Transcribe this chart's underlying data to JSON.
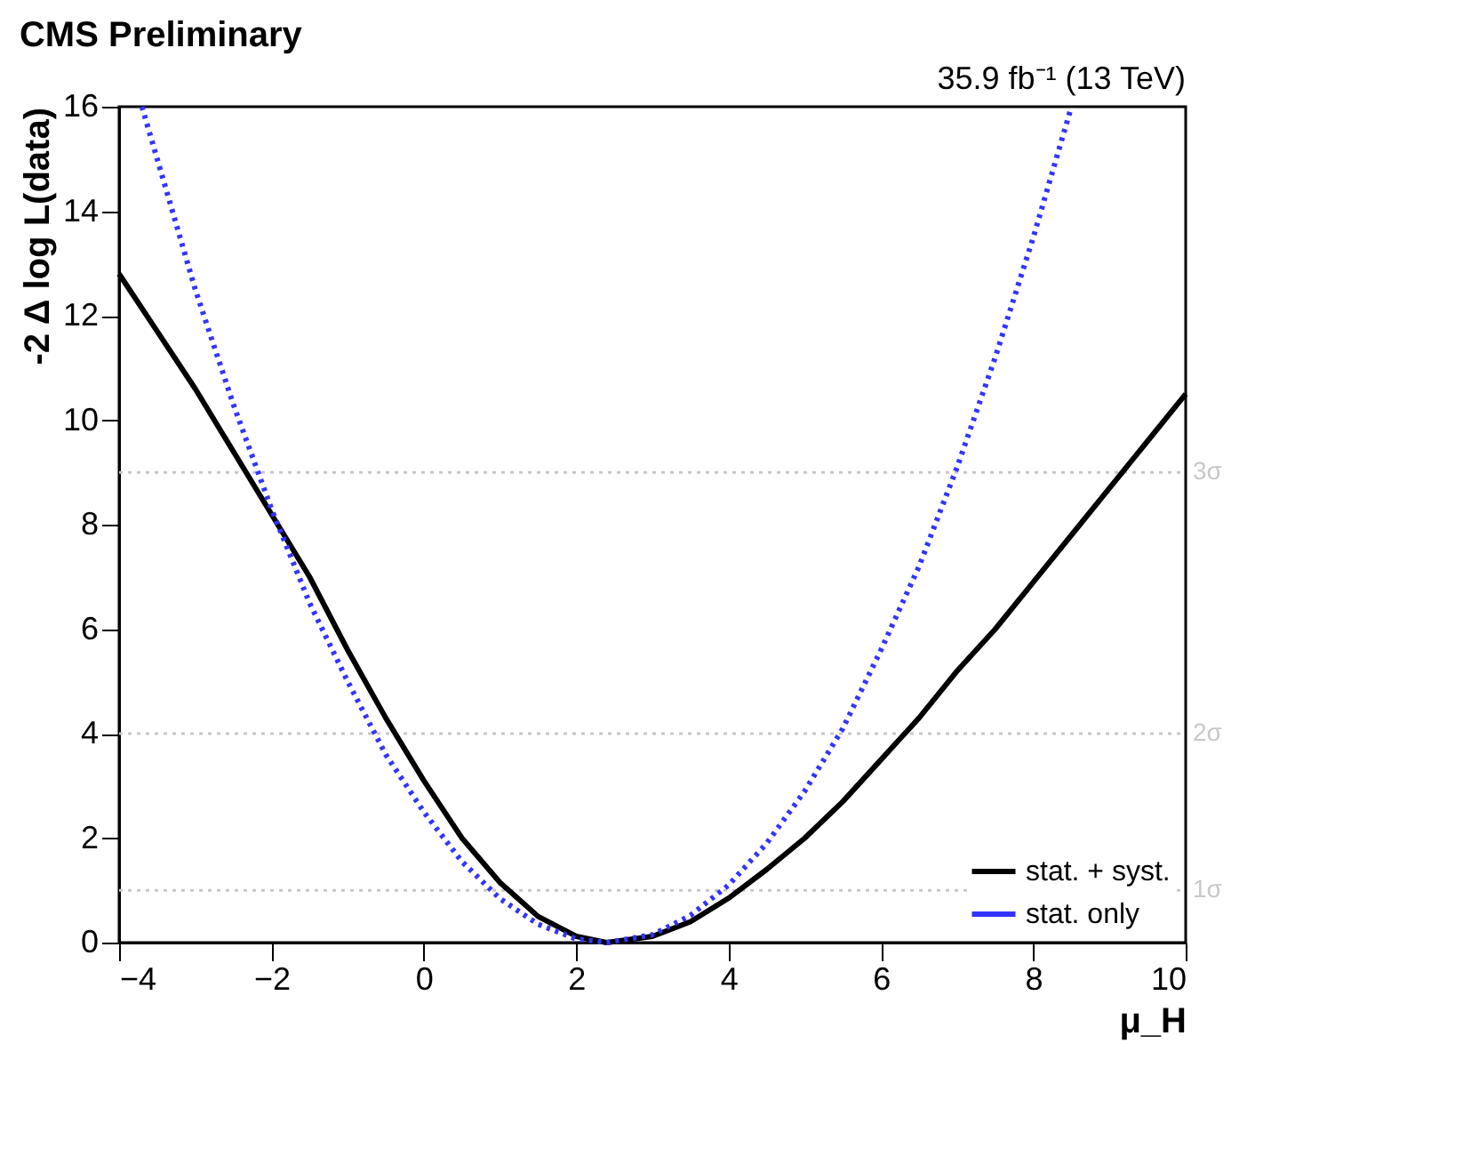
{
  "chart_data": {
    "type": "line",
    "title": "CMS Preliminary",
    "xlabel": "μ_H",
    "ylabel": "-2 Δ log L(data)",
    "annotations": [
      "35.9 fb⁻¹ (13 TeV)"
    ],
    "xlim": [
      -4,
      10
    ],
    "xticks": [
      -4,
      -2,
      0,
      2,
      4,
      6,
      8,
      10
    ],
    "ylim": [
      0,
      16
    ],
    "yticks": [
      0,
      2,
      4,
      6,
      8,
      10,
      12,
      14,
      16
    ],
    "grid": false,
    "legend": "bottom right",
    "marker": "none",
    "ref_lines": [
      {
        "axis": "y",
        "value": 1,
        "label": "1σ",
        "color": "#c8c8c8",
        "line_style": "dotted"
      },
      {
        "axis": "y",
        "value": 4,
        "label": "2σ",
        "color": "#c8c8c8",
        "line_style": "dotted"
      },
      {
        "axis": "y",
        "value": 9,
        "label": "3σ",
        "color": "#c8c8c8",
        "line_style": "dotted"
      }
    ],
    "series": [
      {
        "name": "stat. + syst.",
        "color": "#000000",
        "line_style": "solid",
        "x": [
          -4,
          -3.5,
          -3,
          -2.5,
          -2,
          -1.5,
          -1,
          -0.5,
          0,
          0.5,
          1,
          1.5,
          2,
          2.4,
          3,
          3.5,
          4,
          4.5,
          5,
          5.5,
          6,
          6.5,
          7,
          7.5,
          8,
          8.5,
          9,
          9.5,
          10
        ],
        "values": [
          12.8,
          11.7,
          10.6,
          9.4,
          8.2,
          7.0,
          5.6,
          4.3,
          3.1,
          2.0,
          1.15,
          0.5,
          0.12,
          0,
          0.12,
          0.4,
          0.85,
          1.4,
          2.0,
          2.7,
          3.5,
          4.3,
          5.2,
          6.0,
          6.9,
          7.8,
          8.7,
          9.6,
          10.5
        ]
      },
      {
        "name": "stat. only",
        "color": "#3333ff",
        "line_style": "dotted",
        "x": [
          -3.7,
          -3.5,
          -3,
          -2.5,
          -2,
          -1.5,
          -1,
          -0.5,
          0,
          0.5,
          1,
          1.5,
          2,
          2.4,
          3,
          3.5,
          4,
          4.5,
          5,
          5.5,
          6,
          6.5,
          7,
          7.5,
          8,
          8.5
        ],
        "values": [
          16.0,
          15.0,
          12.5,
          10.3,
          8.3,
          6.5,
          5.0,
          3.6,
          2.5,
          1.55,
          0.84,
          0.35,
          0.07,
          0,
          0.15,
          0.52,
          1.1,
          1.9,
          2.9,
          4.1,
          5.6,
          7.2,
          9.1,
          11.2,
          13.5,
          16.0
        ]
      }
    ]
  }
}
